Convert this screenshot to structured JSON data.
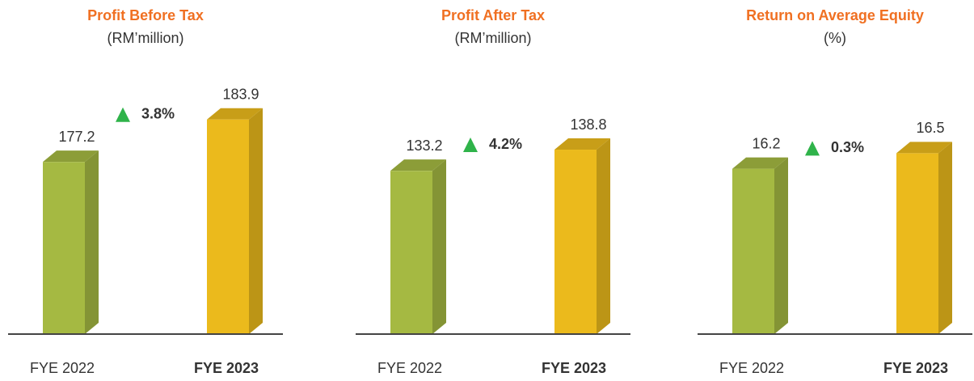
{
  "chart_data": [
    {
      "type": "bar",
      "title": "Profit Before Tax",
      "subtitle": "(RM’million)",
      "categories": [
        "FYE 2022",
        "FYE 2023"
      ],
      "values": [
        177.2,
        183.9
      ],
      "colors": [
        "#a5b942",
        "#ebba1c"
      ],
      "annotation": "3.8%",
      "ylim": [
        150,
        190
      ]
    },
    {
      "type": "bar",
      "title": "Profit After Tax",
      "subtitle": "(RM’million)",
      "categories": [
        "FYE 2022",
        "FYE 2023"
      ],
      "values": [
        133.2,
        138.8
      ],
      "colors": [
        "#a5b942",
        "#ebba1c"
      ],
      "annotation": "4.2%",
      "ylim": [
        90,
        157
      ]
    },
    {
      "type": "bar",
      "title": "Return on Average Equity",
      "subtitle": "(%)",
      "categories": [
        "FYE 2022",
        "FYE 2023"
      ],
      "values": [
        16.2,
        16.5
      ],
      "colors": [
        "#a5b942",
        "#ebba1c"
      ],
      "annotation": "0.3%",
      "ylim": [
        13,
        17.9
      ]
    }
  ]
}
